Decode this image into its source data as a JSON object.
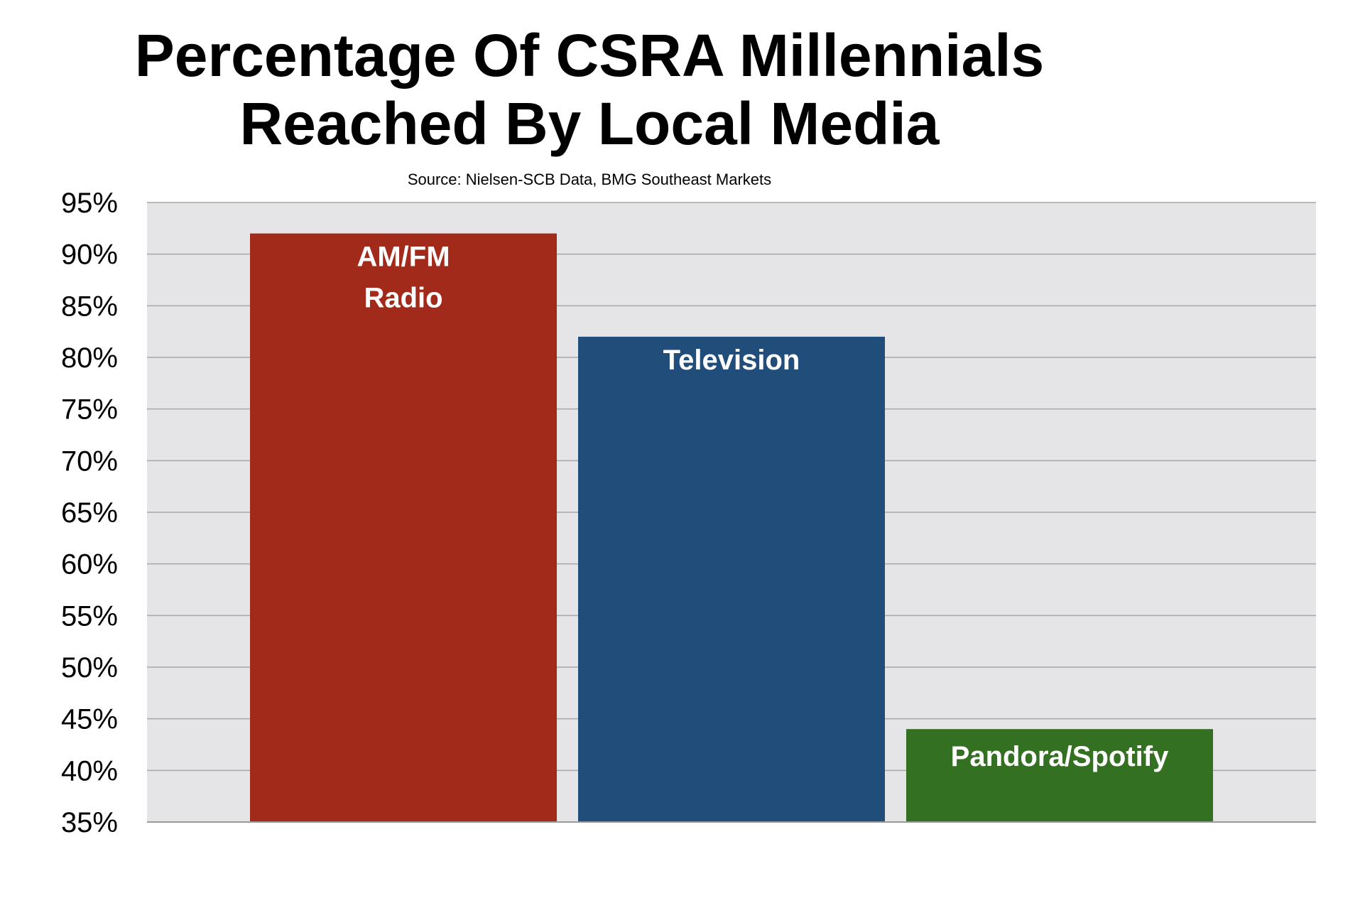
{
  "chart_data": {
    "type": "bar",
    "title_lines": [
      "Percentage Of CSRA Millennials",
      "Reached By Local Media"
    ],
    "source": "Source: Nielsen-SCB Data, BMG Southeast Markets",
    "categories": [
      [
        "AM/FM",
        "Radio"
      ],
      [
        "Television"
      ],
      [
        "Pandora/Spotify"
      ]
    ],
    "values": [
      92,
      82,
      44
    ],
    "colors": [
      "#a22a1a",
      "#214d7b",
      "#347021"
    ],
    "ylim": [
      35,
      95
    ],
    "yticks": [
      35,
      40,
      45,
      50,
      55,
      60,
      65,
      70,
      75,
      80,
      85,
      90,
      95
    ],
    "ytick_suffix": "%",
    "grid": true,
    "legend": "none",
    "xlabel": "",
    "ylabel": ""
  }
}
